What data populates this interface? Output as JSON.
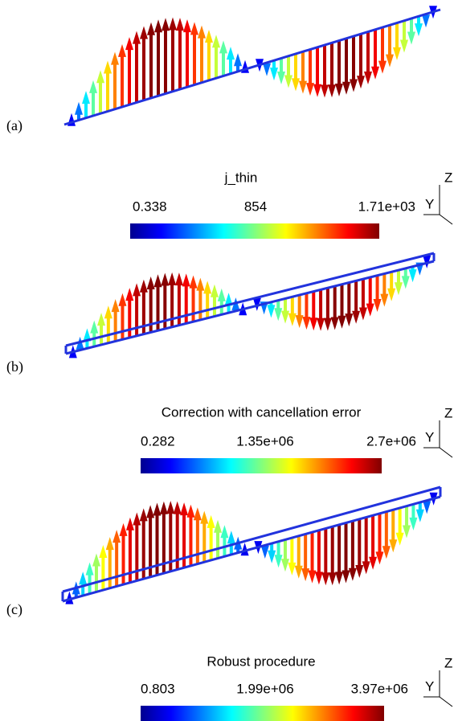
{
  "panels": [
    {
      "label": "(a)",
      "colorbar": {
        "title": "j_thin",
        "ticks": [
          "0.338",
          "854",
          "1.71e+03"
        ]
      },
      "triad": {
        "z": "Z",
        "y": "Y"
      }
    },
    {
      "label": "(b)",
      "colorbar": {
        "title": "Correction with cancellation error",
        "ticks": [
          "0.282",
          "1.35e+06",
          "2.7e+06"
        ]
      },
      "triad": {
        "z": "Z",
        "y": "Y"
      }
    },
    {
      "label": "(c)",
      "colorbar": {
        "title": "Robust procedure",
        "ticks": [
          "0.803",
          "1.99e+06",
          "3.97e+06"
        ]
      },
      "triad": {
        "z": "Z",
        "y": "Y"
      }
    }
  ]
}
